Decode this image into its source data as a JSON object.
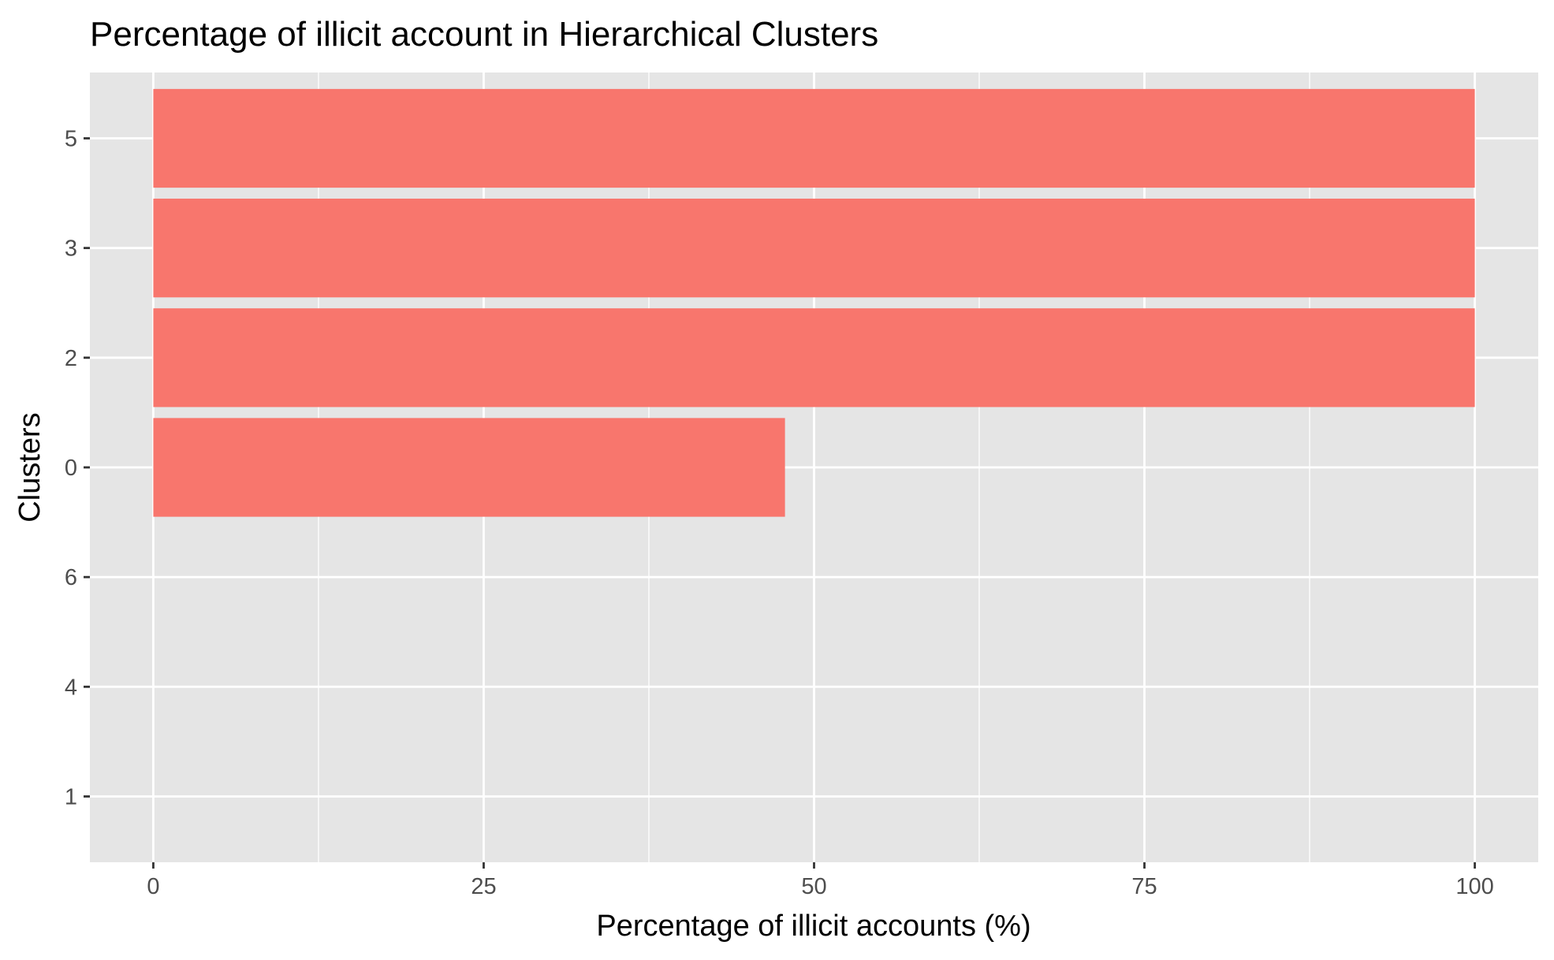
{
  "chart_data": {
    "type": "bar",
    "orientation": "horizontal",
    "title": "Percentage of illicit account in Hierarchical Clusters",
    "xlabel": "Percentage of illicit accounts (%)",
    "ylabel": "Clusters",
    "categories": [
      "5",
      "3",
      "2",
      "0",
      "6",
      "4",
      "1"
    ],
    "values": [
      100,
      100,
      100,
      47.8,
      0,
      0,
      0
    ],
    "xlim": [
      -4.8,
      104.8
    ],
    "x_ticks": [
      0,
      25,
      50,
      75,
      100
    ],
    "x_tick_labels": [
      "0",
      "25",
      "50",
      "75",
      "100"
    ],
    "grid": true,
    "bar_color": "#F8766D",
    "panel_background": "#E5E5E5",
    "grid_color": "#FFFFFF"
  }
}
